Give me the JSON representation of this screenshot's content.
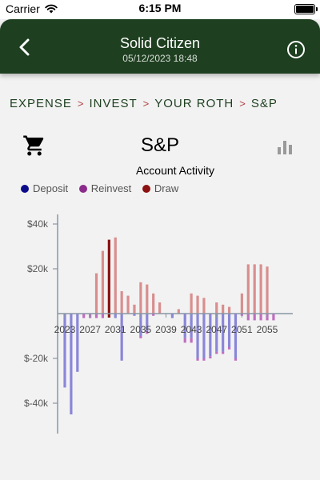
{
  "status_bar": {
    "carrier": "Carrier",
    "time": "6:15 PM"
  },
  "nav": {
    "title": "Solid Citizen",
    "subtitle": "05/12/2023 18:48"
  },
  "breadcrumb": [
    "EXPENSE",
    "INVEST",
    "YOUR ROTH",
    "S&P"
  ],
  "breadcrumb_separator": ">",
  "fund_title": "S&P",
  "colors": {
    "header": "#1e3f20",
    "deposit": "#8a86d8",
    "reinvest": "#c06ec0",
    "draw": "#d98e8e",
    "draw_highlight": "#8b1111"
  },
  "icons": {
    "back": "chevron-left",
    "info": "info-circle",
    "cart": "shopping-cart",
    "chart": "bar-chart"
  },
  "chart_data": {
    "type": "bar",
    "title": "Account Activity",
    "legend": [
      {
        "name": "Deposit",
        "color": "#0b0b8a"
      },
      {
        "name": "Reinvest",
        "color": "#8b2b8b"
      },
      {
        "name": "Draw",
        "color": "#8b1111"
      }
    ],
    "y_ticks": [
      "$40k",
      "$20k",
      "$-20k",
      "$-40k"
    ],
    "y_tick_values": [
      40000,
      20000,
      -20000,
      -40000
    ],
    "ylim": [
      -53000,
      42000
    ],
    "x_ticks": [
      "2023",
      "2027",
      "2031",
      "2035",
      "2039",
      "2043",
      "2047",
      "2051",
      "2055"
    ],
    "x": [
      2023,
      2024,
      2025,
      2026,
      2027,
      2028,
      2029,
      2030,
      2031,
      2032,
      2033,
      2034,
      2035,
      2036,
      2037,
      2038,
      2039,
      2040,
      2041,
      2042,
      2043,
      2044,
      2045,
      2046,
      2047,
      2048,
      2049,
      2050,
      2051,
      2052,
      2053,
      2054,
      2055,
      2056
    ],
    "series": [
      {
        "name": "Deposit",
        "values": [
          -33000,
          -45000,
          -26000,
          0,
          0,
          0,
          0,
          0,
          -2000,
          -21000,
          0,
          -1000,
          -10000,
          -8000,
          0,
          0,
          0,
          -2000,
          0,
          -11000,
          -11000,
          -20000,
          -20000,
          -19000,
          -17000,
          -17000,
          -15000,
          -20000,
          0,
          0,
          0,
          0,
          0,
          0
        ]
      },
      {
        "name": "Reinvest",
        "values": [
          0,
          0,
          0,
          -2000,
          -2000,
          -2000,
          -2000,
          0,
          0,
          0,
          0,
          0,
          -1000,
          -1000,
          -1000,
          0,
          0,
          0,
          0,
          -2000,
          -2000,
          -1000,
          -1000,
          -1000,
          -1000,
          -1000,
          -1000,
          -1000,
          -1000,
          -3000,
          -3000,
          -3000,
          -3000,
          -3000
        ]
      },
      {
        "name": "Draw",
        "values": [
          0,
          0,
          0,
          0,
          0,
          18000,
          28000,
          33000,
          34000,
          10000,
          8000,
          4000,
          14000,
          13000,
          9000,
          5000,
          0,
          0,
          2000,
          0,
          9000,
          8000,
          7000,
          0,
          5000,
          4000,
          3000,
          0,
          9000,
          22000,
          22000,
          22000,
          21000,
          0
        ]
      }
    ],
    "highlight": {
      "x": 2030,
      "value": 33000
    }
  }
}
